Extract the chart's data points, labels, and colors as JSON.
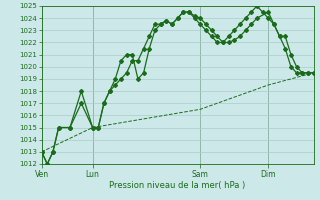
{
  "xlabel": "Pression niveau de la mer( hPa )",
  "ylim": [
    1012,
    1025
  ],
  "yticks": [
    1012,
    1013,
    1014,
    1015,
    1016,
    1017,
    1018,
    1019,
    1020,
    1021,
    1022,
    1023,
    1024,
    1025
  ],
  "bg_color": "#cce8e8",
  "grid_color": "#aacccc",
  "line_color": "#1a6b1a",
  "xtick_labels": [
    "Ven",
    "Lun",
    "Sam",
    "Dim"
  ],
  "xtick_positions": [
    0,
    9,
    28,
    40
  ],
  "vline_positions": [
    0,
    9,
    28,
    40
  ],
  "xlim": [
    0,
    48
  ],
  "line1_x": [
    0,
    1,
    2,
    3,
    5,
    7,
    9,
    10,
    11,
    12,
    13,
    14,
    15,
    16,
    17,
    18,
    19,
    20,
    21,
    22,
    23,
    24,
    25,
    26,
    27,
    28,
    29,
    30,
    31,
    32,
    33,
    34,
    35,
    36,
    37,
    38,
    39,
    40,
    41,
    42,
    43,
    44,
    45,
    46,
    47,
    48
  ],
  "line1_y": [
    1013.0,
    1012.0,
    1013.0,
    1015.0,
    1015.0,
    1018.0,
    1015.0,
    1015.0,
    1017.0,
    1018.0,
    1019.0,
    1020.5,
    1021.0,
    1021.0,
    1019.0,
    1019.5,
    1021.5,
    1023.0,
    1023.5,
    1023.8,
    1023.5,
    1024.0,
    1024.5,
    1024.5,
    1024.0,
    1023.5,
    1023.0,
    1022.5,
    1022.0,
    1022.0,
    1022.5,
    1023.0,
    1023.5,
    1024.0,
    1024.5,
    1025.0,
    1024.5,
    1024.0,
    1023.5,
    1022.5,
    1021.5,
    1020.0,
    1019.5,
    1019.5,
    1019.5,
    1019.5
  ],
  "line2_x": [
    0,
    1,
    2,
    3,
    5,
    7,
    9,
    10,
    11,
    12,
    13,
    14,
    15,
    16,
    17,
    18,
    19,
    20,
    21,
    22,
    23,
    24,
    25,
    26,
    27,
    28,
    29,
    30,
    31,
    32,
    33,
    34,
    35,
    36,
    37,
    38,
    40,
    41,
    42,
    43,
    44,
    45,
    46,
    47,
    48
  ],
  "line2_y": [
    1013.0,
    1012.0,
    1013.0,
    1015.0,
    1015.0,
    1017.0,
    1015.0,
    1015.0,
    1017.0,
    1018.0,
    1018.5,
    1019.0,
    1019.5,
    1020.5,
    1020.5,
    1021.5,
    1022.5,
    1023.5,
    1023.5,
    1023.8,
    1023.5,
    1024.0,
    1024.5,
    1024.5,
    1024.2,
    1024.0,
    1023.5,
    1023.0,
    1022.5,
    1022.0,
    1022.0,
    1022.2,
    1022.5,
    1023.0,
    1023.5,
    1024.0,
    1024.5,
    1023.5,
    1022.5,
    1022.5,
    1021.0,
    1020.0,
    1019.5,
    1019.5,
    1019.5
  ],
  "line3_x": [
    0,
    9,
    28,
    40,
    48
  ],
  "line3_y": [
    1013.0,
    1015.0,
    1016.5,
    1018.5,
    1019.5
  ]
}
